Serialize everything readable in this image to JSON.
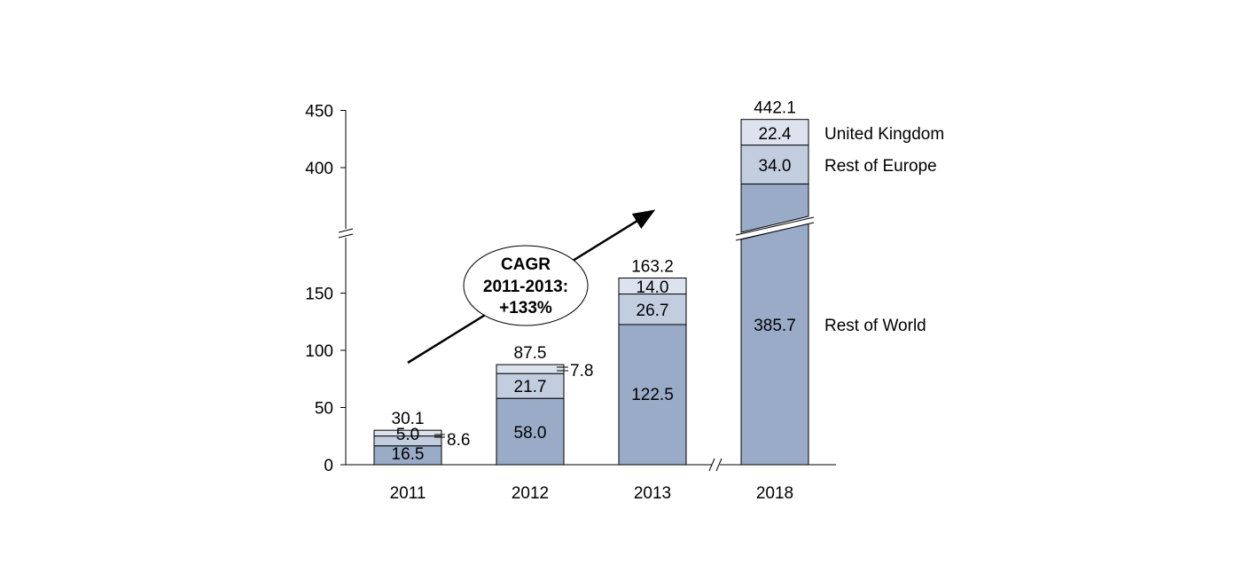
{
  "chart_data": {
    "type": "bar",
    "stacked": true,
    "categories": [
      "2011",
      "2012",
      "2013",
      "2018"
    ],
    "series": [
      {
        "name": "Rest of World",
        "values": [
          16.5,
          58.0,
          122.5,
          385.7
        ],
        "labels": [
          "16.5",
          "58.0",
          "122.5",
          "385.7"
        ],
        "color": "#9aabc8"
      },
      {
        "name": "Rest of Europe",
        "values": [
          8.6,
          21.7,
          26.7,
          34.0
        ],
        "labels": [
          "8.6",
          "21.7",
          "26.7",
          "34.0"
        ],
        "color": "#c3cde0"
      },
      {
        "name": "United Kingdom",
        "values": [
          5.0,
          7.8,
          14.0,
          22.4
        ],
        "labels": [
          "5.0",
          "7.8",
          "14.0",
          "22.4"
        ],
        "color": "#dde3ee"
      }
    ],
    "totals": [
      "30.1",
      "87.5",
      "163.2",
      "442.1"
    ],
    "y_ticks_lower": [
      "0",
      "50",
      "100",
      "150"
    ],
    "y_ticks_upper": [
      "400",
      "450"
    ],
    "ylim_lower": [
      0,
      195
    ],
    "ylim_upper": [
      345,
      450
    ],
    "axis_break": true,
    "annotation": {
      "lines": [
        "CAGR",
        "2011-2013:",
        "+133%"
      ]
    },
    "title": "",
    "xlabel": "",
    "ylabel": ""
  }
}
